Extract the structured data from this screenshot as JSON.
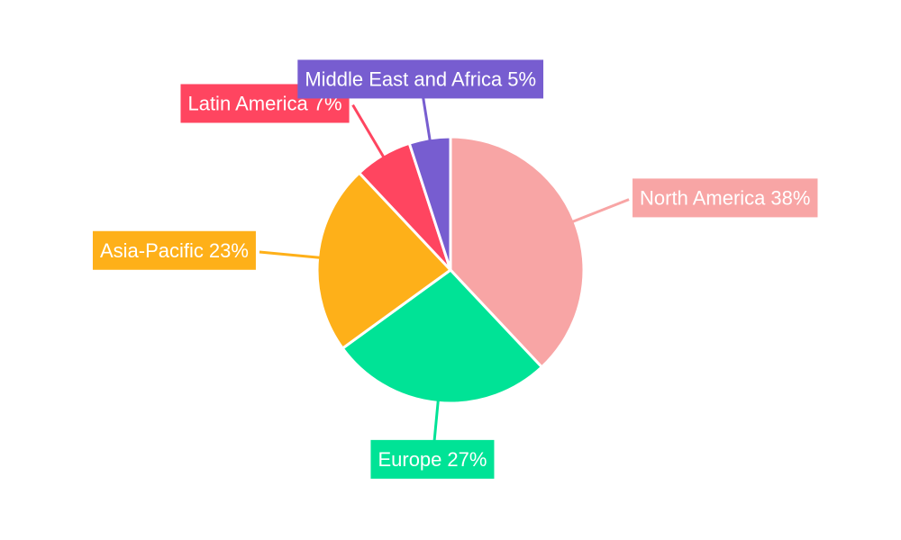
{
  "chart_data": {
    "type": "pie",
    "categories": [
      "North America",
      "Europe",
      "Asia-Pacific",
      "Latin America",
      "Middle East and Africa"
    ],
    "values": [
      38,
      27,
      23,
      7,
      5
    ],
    "value_labels": [
      "38%",
      "27%",
      "23%",
      "7%",
      "5%"
    ],
    "colors": [
      "#f8a5a5",
      "#00e396",
      "#feb019",
      "#ff4560",
      "#775dd0"
    ]
  }
}
